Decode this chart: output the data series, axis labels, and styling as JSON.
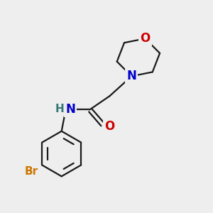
{
  "bg_color": "#eeeeee",
  "bond_color": "#1a1a1a",
  "N_color": "#0000cc",
  "O_color": "#cc0000",
  "Br_color": "#cc7700",
  "H_color": "#337777",
  "bond_width": 1.6,
  "figsize": [
    3.0,
    3.0
  ],
  "dpi": 100,
  "xlim": [
    0,
    10
  ],
  "ylim": [
    0,
    10
  ]
}
